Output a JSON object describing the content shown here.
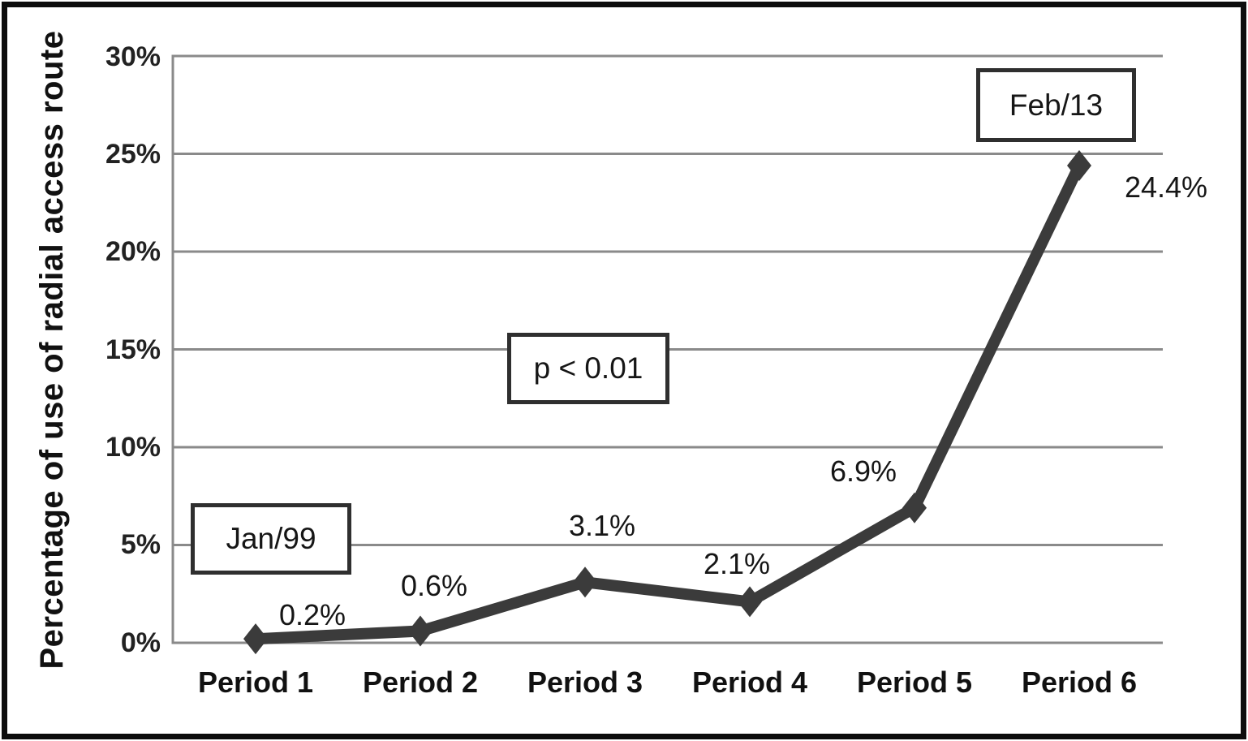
{
  "chart_data": {
    "type": "line",
    "title": "",
    "xlabel": "",
    "ylabel": "Percentage of use of radial access route",
    "categories": [
      "Period 1",
      "Period 2",
      "Period 3",
      "Period 4",
      "Period 5",
      "Period 6"
    ],
    "values": [
      0.2,
      0.6,
      3.1,
      2.1,
      6.9,
      24.4
    ],
    "value_labels": [
      "0.2%",
      "0.6%",
      "3.1%",
      "2.1%",
      "6.9%",
      "24.4%"
    ],
    "ylim": [
      0,
      30
    ],
    "ytick_step": 5,
    "ytick_labels": [
      "30%",
      "25%",
      "20%",
      "15%",
      "10%",
      "5%",
      "0%"
    ],
    "grid": "horizontal",
    "legend": "none",
    "marker": "diamond",
    "annotations": [
      {
        "text": "Jan/99"
      },
      {
        "text": "p < 0.01"
      },
      {
        "text": "Feb/13"
      }
    ],
    "colors": {
      "line": "#3b3b3b",
      "grid": "#8a8a8a",
      "axis": "#8a8a8a",
      "text": "#161616",
      "annotation_border": "#2f2f2f",
      "background": "#ffffff",
      "frame": "#0d0d0d"
    }
  }
}
